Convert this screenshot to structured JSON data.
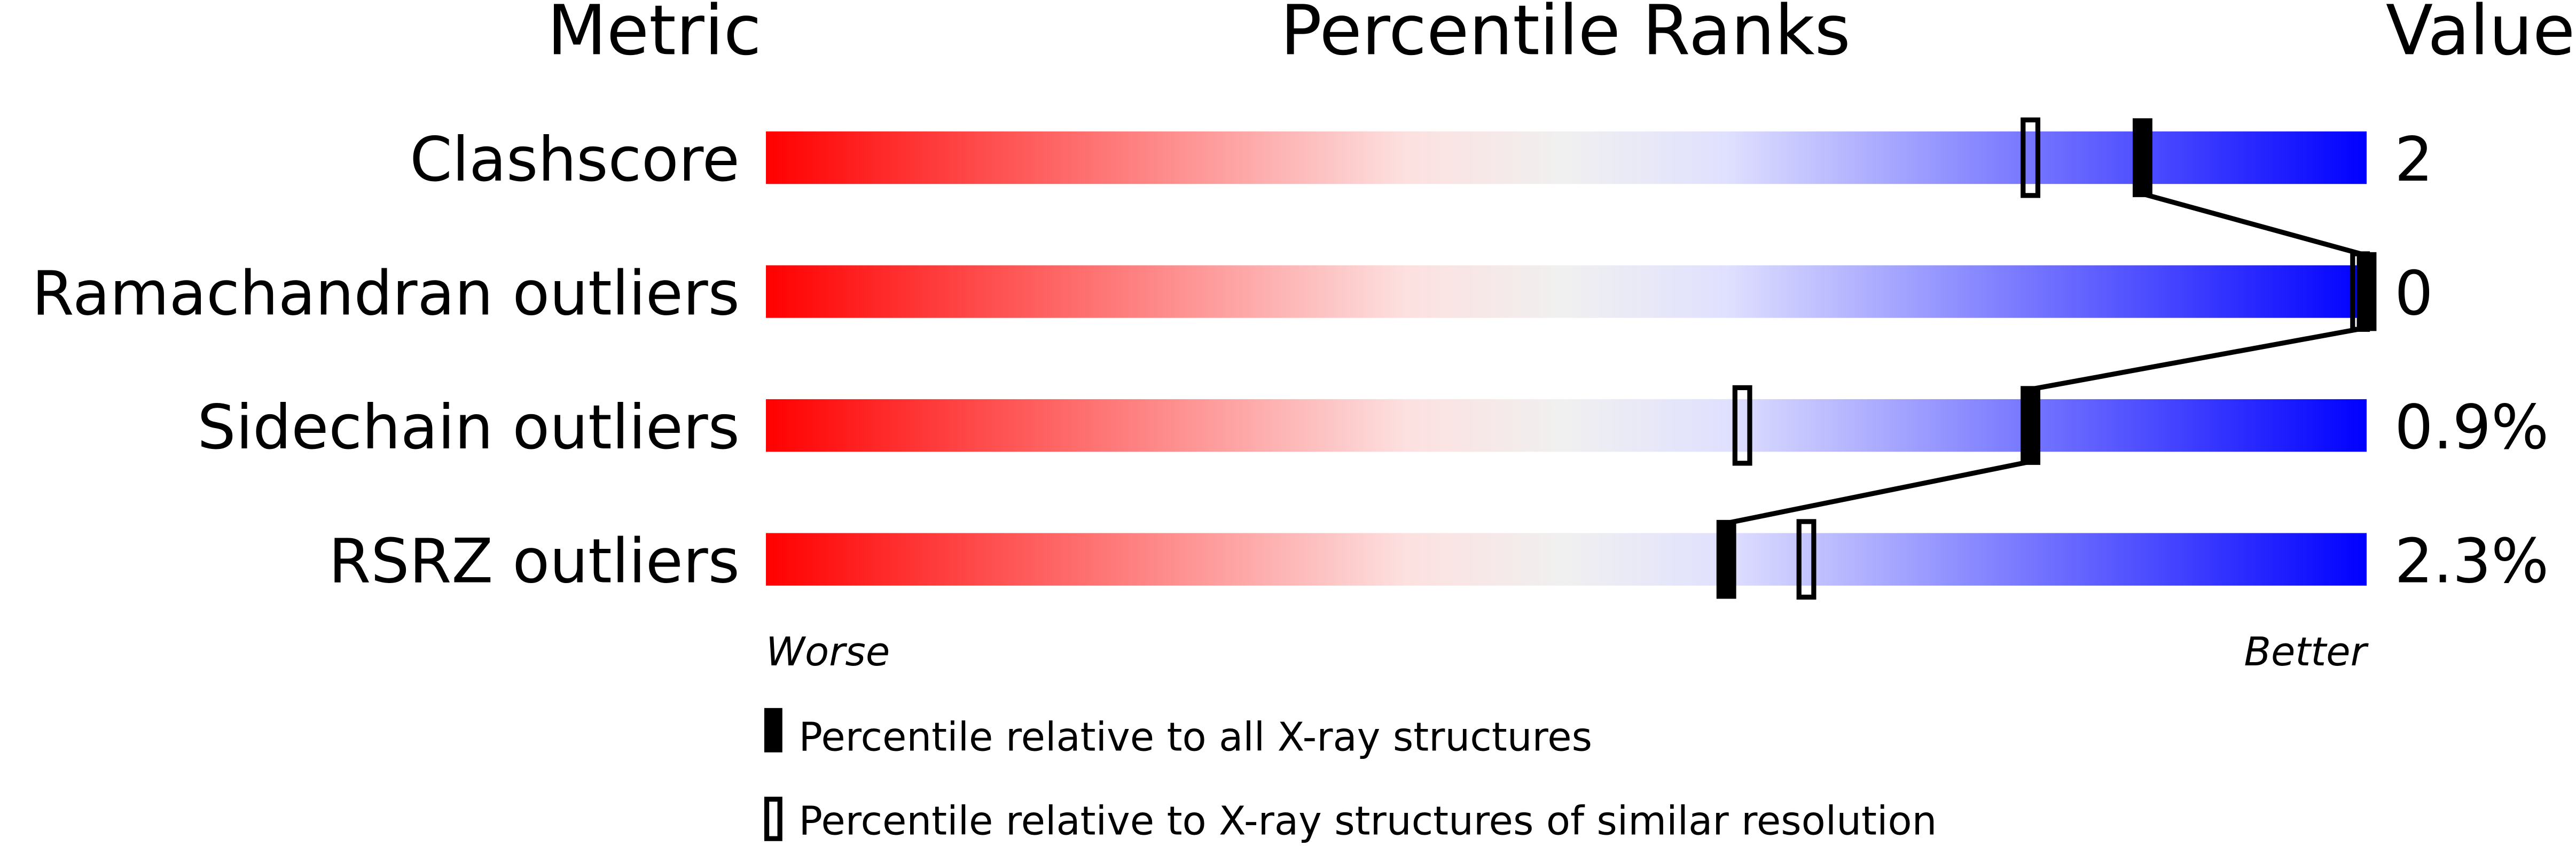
{
  "chart_data": {
    "type": "percentile-bar",
    "headers": {
      "metric": "Metric",
      "ranks": "Percentile Ranks",
      "value": "Value"
    },
    "axis": {
      "left_label": "Worse",
      "right_label": "Better",
      "range": [
        0,
        100
      ]
    },
    "gradient_colors": [
      "#ff0000",
      "#fde0e0",
      "#f0f0f0",
      "#e0e0ff",
      "#0000ff"
    ],
    "rows": [
      {
        "metric": "Clashscore",
        "value": "2",
        "percentile_all": 86,
        "percentile_similar": 79
      },
      {
        "metric": "Ramachandran outliers",
        "value": "0",
        "percentile_all": 100,
        "percentile_similar": 100
      },
      {
        "metric": "Sidechain outliers",
        "value": "0.9%",
        "percentile_all": 79,
        "percentile_similar": 61
      },
      {
        "metric": "RSRZ outliers",
        "value": "2.3%",
        "percentile_all": 60,
        "percentile_similar": 65
      }
    ],
    "legend": [
      {
        "marker": "filled",
        "label": "Percentile relative to all X-ray structures"
      },
      {
        "marker": "open",
        "label": "Percentile relative to X-ray structures of similar resolution"
      }
    ]
  }
}
